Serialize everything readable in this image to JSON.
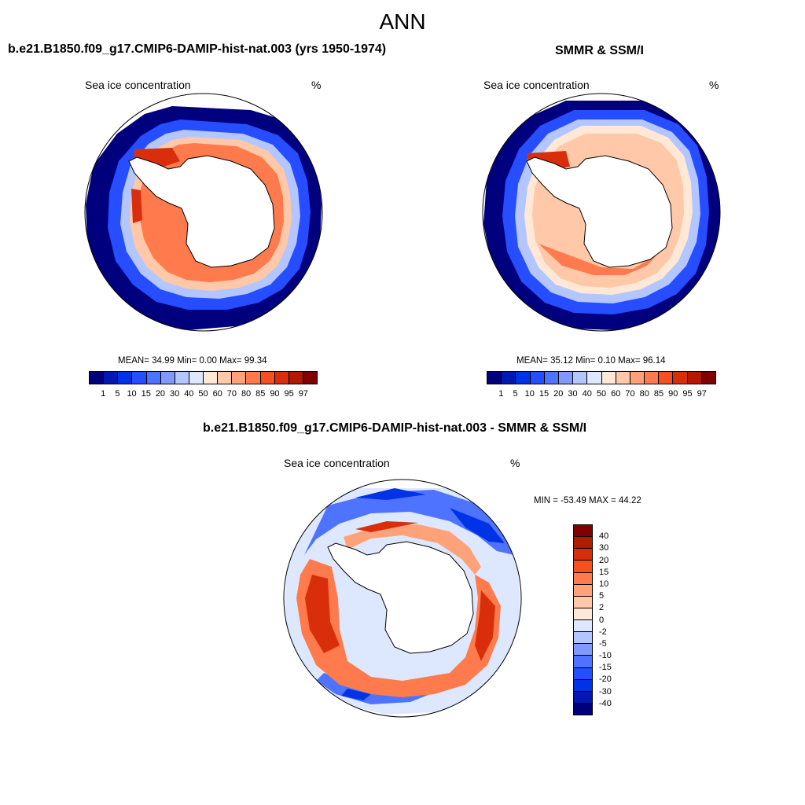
{
  "main_title": "ANN",
  "panels": [
    {
      "title": "b.e21.B1850.f09_g17.CMIP6-DAMIP-hist-nat.003 (yrs 1950-1974)",
      "var_label": "Sea ice concentration",
      "units": "%",
      "stats": "MEAN=  34.99  Min=   0.00  Max=  99.34",
      "mean": 34.99,
      "min": 0.0,
      "max": 99.34
    },
    {
      "title": "SMMR & SSM/I",
      "var_label": "Sea ice concentration",
      "units": "%",
      "stats": "MEAN=  35.12  Min=   0.10  Max=  96.14",
      "mean": 35.12,
      "min": 0.1,
      "max": 96.14
    },
    {
      "title": "b.e21.B1850.f09_g17.CMIP6-DAMIP-hist-nat.003 - SMMR & SSM/I",
      "var_label": "Sea ice concentration",
      "units": "%",
      "stats": "MIN = -53.49 MAX =  44.22",
      "min": -53.49,
      "max": 44.22
    }
  ],
  "abs_colorbar": {
    "levels": [
      "1",
      "5",
      "10",
      "15",
      "20",
      "30",
      "40",
      "50",
      "60",
      "70",
      "80",
      "85",
      "90",
      "95",
      "97"
    ],
    "colors": [
      "#00007f",
      "#0019b3",
      "#0033e6",
      "#264dff",
      "#4d73ff",
      "#7f99ff",
      "#b3c6ff",
      "#dde8ff",
      "#ffe8d6",
      "#ffc8a8",
      "#ffa27a",
      "#ff7a4d",
      "#f55020",
      "#d92e0b",
      "#b31800",
      "#800000"
    ]
  },
  "diff_colorbar": {
    "levels": [
      "40",
      "30",
      "20",
      "15",
      "10",
      "5",
      "2",
      "0",
      "-2",
      "-5",
      "-10",
      "-15",
      "-20",
      "-30",
      "-40"
    ],
    "colors": [
      "#800000",
      "#b31800",
      "#d92e0b",
      "#f55020",
      "#ff7a4d",
      "#ffa27a",
      "#ffc8a8",
      "#ffe8d6",
      "#dde8ff",
      "#b3c6ff",
      "#7f99ff",
      "#4d73ff",
      "#264dff",
      "#0033e6",
      "#0019b3",
      "#00007f"
    ]
  }
}
